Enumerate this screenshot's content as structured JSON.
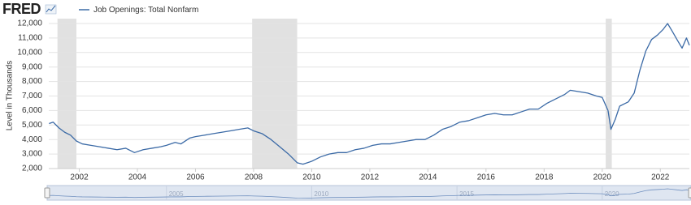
{
  "brand": "FRED",
  "chart_data": {
    "type": "line",
    "y_label": "Level in Thousands",
    "x": [
      2000.96,
      2001.1,
      2001.3,
      2001.5,
      2001.7,
      2001.9,
      2002.1,
      2002.4,
      2002.7,
      2003.0,
      2003.3,
      2003.6,
      2003.9,
      2004.2,
      2004.5,
      2004.8,
      2005.0,
      2005.3,
      2005.5,
      2005.8,
      2006.0,
      2006.3,
      2006.6,
      2006.9,
      2007.2,
      2007.5,
      2007.8,
      2008.0,
      2008.3,
      2008.6,
      2008.9,
      2009.2,
      2009.5,
      2009.7,
      2010.0,
      2010.3,
      2010.6,
      2010.9,
      2011.2,
      2011.5,
      2011.8,
      2012.1,
      2012.4,
      2012.7,
      2013.0,
      2013.3,
      2013.6,
      2013.9,
      2014.2,
      2014.5,
      2014.8,
      2015.1,
      2015.4,
      2015.7,
      2016.0,
      2016.3,
      2016.6,
      2016.9,
      2017.2,
      2017.5,
      2017.8,
      2018.1,
      2018.4,
      2018.7,
      2018.9,
      2019.2,
      2019.5,
      2019.8,
      2020.0,
      2020.2,
      2020.3,
      2020.45,
      2020.6,
      2020.9,
      2021.1,
      2021.3,
      2021.5,
      2021.7,
      2021.9,
      2022.1,
      2022.25,
      2022.4,
      2022.6,
      2022.75,
      2022.9,
      2023.0
    ],
    "series": [
      {
        "name": "Job Openings: Total Nonfarm",
        "color": "#3b6aa6",
        "values": [
          5100,
          5200,
          4800,
          4500,
          4300,
          3900,
          3700,
          3600,
          3500,
          3400,
          3300,
          3400,
          3100,
          3300,
          3400,
          3500,
          3600,
          3800,
          3700,
          4100,
          4200,
          4300,
          4400,
          4500,
          4600,
          4700,
          4800,
          4600,
          4400,
          4000,
          3500,
          3000,
          2400,
          2300,
          2500,
          2800,
          3000,
          3100,
          3100,
          3300,
          3400,
          3600,
          3700,
          3700,
          3800,
          3900,
          4000,
          4000,
          4300,
          4700,
          4900,
          5200,
          5300,
          5500,
          5700,
          5800,
          5700,
          5700,
          5900,
          6100,
          6100,
          6500,
          6800,
          7100,
          7400,
          7300,
          7200,
          7000,
          6900,
          6000,
          4700,
          5400,
          6300,
          6600,
          7200,
          8800,
          10100,
          10900,
          11200,
          11600,
          12000,
          11500,
          10800,
          10300,
          11000,
          10500
        ]
      }
    ],
    "recessions": [
      [
        2001.25,
        2001.9
      ],
      [
        2007.95,
        2009.5
      ],
      [
        2020.12,
        2020.33
      ]
    ],
    "recession_color": "#e1e1e1",
    "xlim": [
      2000.95,
      2023.0
    ],
    "xticks": [
      2002,
      2004,
      2006,
      2008,
      2010,
      2012,
      2014,
      2016,
      2018,
      2020,
      2022
    ],
    "ylim": [
      2000,
      12000
    ],
    "yticks": [
      {
        "value": 2000,
        "label": "2,000"
      },
      {
        "value": 3000,
        "label": "3,000"
      },
      {
        "value": 4000,
        "label": "4,000"
      },
      {
        "value": 5000,
        "label": "5,000"
      },
      {
        "value": 6000,
        "label": "6,000"
      },
      {
        "value": 7000,
        "label": "7,000"
      },
      {
        "value": 8000,
        "label": "8,000"
      },
      {
        "value": 9000,
        "label": "9,000"
      },
      {
        "value": 10000,
        "label": "10,000"
      },
      {
        "value": 11000,
        "label": "11,000"
      },
      {
        "value": 12000,
        "label": "12,000"
      }
    ],
    "grid": true,
    "navigator_xticks": [
      2005,
      2010,
      2015,
      2020
    ]
  }
}
